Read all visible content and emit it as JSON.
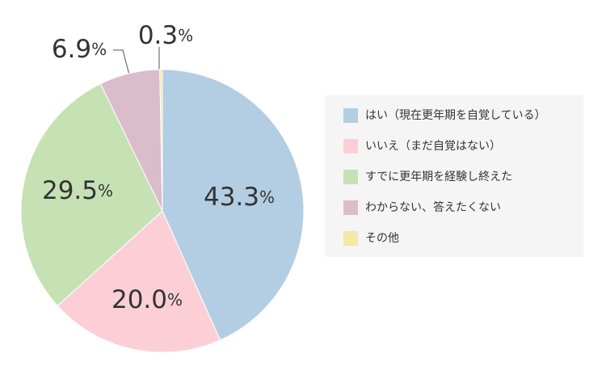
{
  "chart_data": {
    "type": "pie",
    "categories": [
      "はい（現在更年期を自覚している）",
      "いいえ（まだ自覚はない）",
      "すでに更年期を経験し終えた",
      "わからない、答えたくない",
      "その他"
    ],
    "values": [
      43.3,
      20.0,
      29.5,
      6.9,
      0.3
    ],
    "value_labels": [
      "43.3%",
      "20.0%",
      "29.5%",
      "6.9%",
      "0.3%"
    ],
    "colors": [
      "#b3cde3",
      "#fccfd6",
      "#c6e2b4",
      "#dbbccb",
      "#f5e7a6"
    ],
    "legend": "right"
  }
}
